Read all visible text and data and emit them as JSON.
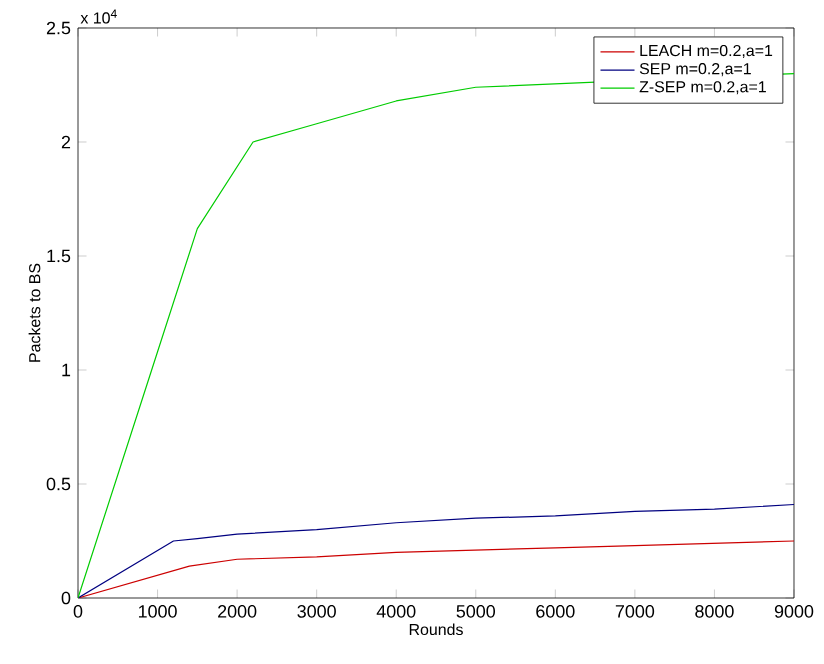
{
  "chart_data": {
    "type": "line",
    "xlabel": "Rounds",
    "ylabel": "Packets to BS",
    "annotations": [
      "x 10$^{4}$"
    ],
    "xlim": [
      0,
      9000
    ],
    "xticks": [
      0,
      1000,
      2000,
      3000,
      4000,
      5000,
      6000,
      7000,
      8000,
      9000
    ],
    "ylim": [
      0,
      2.5
    ],
    "yticks": [
      0,
      0.5,
      1,
      1.5,
      2,
      2.5
    ],
    "legend": "top right",
    "grid": false,
    "series": [
      {
        "name": "LEACH   m=0.2,a=1",
        "color": "#cc0000",
        "x": [
          0,
          1400,
          2000,
          3000,
          4000,
          5000,
          6000,
          7000,
          8000,
          9000
        ],
        "values": [
          0,
          0.14,
          0.17,
          0.18,
          0.2,
          0.21,
          0.22,
          0.23,
          0.24,
          0.25
        ]
      },
      {
        "name": "SEP    m=0.2,a=1",
        "color": "#000080",
        "x": [
          0,
          1200,
          1500,
          2000,
          3000,
          4000,
          5000,
          6000,
          7000,
          8000,
          9000
        ],
        "values": [
          0,
          0.25,
          0.26,
          0.28,
          0.3,
          0.33,
          0.35,
          0.36,
          0.38,
          0.39,
          0.41
        ]
      },
      {
        "name": "Z-SEP m=0.2,a=1",
        "color": "#00cc00",
        "x": [
          0,
          1000,
          1500,
          2200,
          3000,
          4000,
          5000,
          9000
        ],
        "values": [
          0,
          1.08,
          1.62,
          2.0,
          2.08,
          2.18,
          2.24,
          2.3
        ]
      }
    ]
  }
}
